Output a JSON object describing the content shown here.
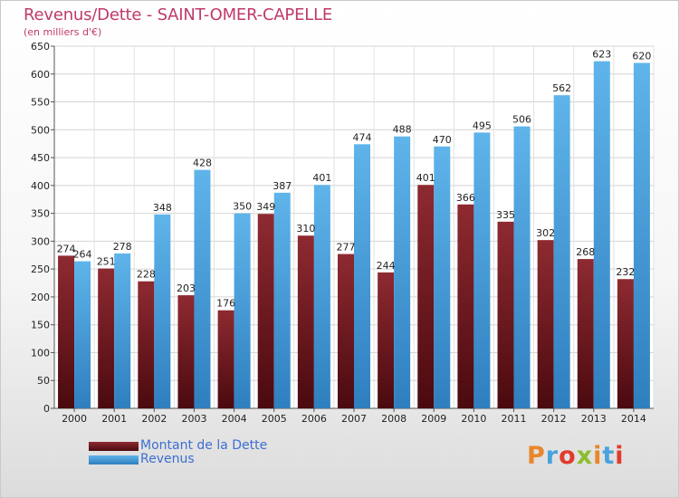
{
  "header": {
    "title": "Revenus/Dette - SAINT-OMER-CAPELLE",
    "subtitle": "(en milliers d'€)"
  },
  "logo": {
    "text": "Proxiti",
    "colors": [
      "#e9862b",
      "#4aa2dc",
      "#e23a2c",
      "#8dbd2c",
      "#e9862b",
      "#4aa2dc",
      "#e23a2c"
    ]
  },
  "colors": {
    "dette": "#7a1a22",
    "revenus": "#4aa2dc",
    "title": "#c0396b",
    "legend_text": "#3d6fd1"
  },
  "chart_data": {
    "type": "bar",
    "title": "Revenus/Dette - SAINT-OMER-CAPELLE",
    "subtitle": "(en milliers d'€)",
    "categories": [
      "2000",
      "2001",
      "2002",
      "2003",
      "2004",
      "2005",
      "2006",
      "2007",
      "2008",
      "2009",
      "2010",
      "2011",
      "2012",
      "2013",
      "2014"
    ],
    "series": [
      {
        "name": "Montant de la Dette",
        "values": [
          274,
          251,
          228,
          203,
          176,
          349,
          310,
          277,
          244,
          401,
          366,
          335,
          302,
          268,
          232
        ]
      },
      {
        "name": "Revenus",
        "values": [
          264,
          278,
          348,
          428,
          350,
          387,
          401,
          474,
          488,
          470,
          495,
          506,
          562,
          623,
          620
        ]
      }
    ],
    "ylim": [
      0,
      650
    ],
    "yticks": [
      0,
      50,
      100,
      150,
      200,
      250,
      300,
      350,
      400,
      450,
      500,
      550,
      600,
      650
    ],
    "grid": true,
    "legend_position": "bottom-left"
  }
}
